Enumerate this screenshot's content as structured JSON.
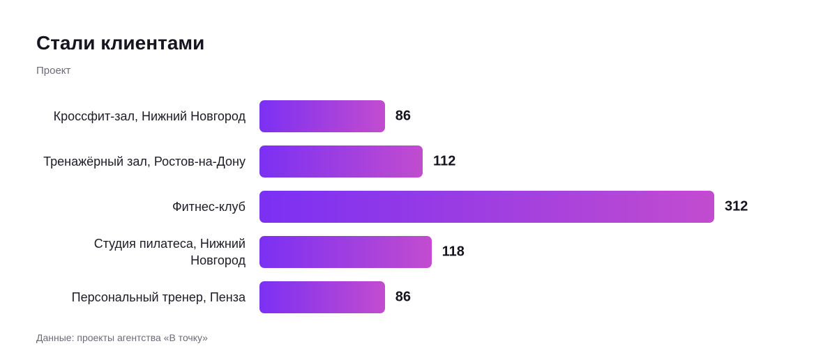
{
  "chart_data": {
    "type": "bar",
    "orientation": "horizontal",
    "title": "Стали клиентами",
    "subtitle": "Проект",
    "source": "Данные: проекты агентства «В точку»",
    "categories": [
      "Кроссфит-зал, Нижний Новгород",
      "Тренажёрный зал, Ростов-на-Дону",
      "Фитнес-клуб",
      "Студия пилатеса, Нижний Новгород",
      "Персональный тренер, Пенза"
    ],
    "values": [
      86,
      112,
      312,
      118,
      86
    ],
    "colors": [
      "#7b30f3",
      "#c24ccf"
    ]
  }
}
